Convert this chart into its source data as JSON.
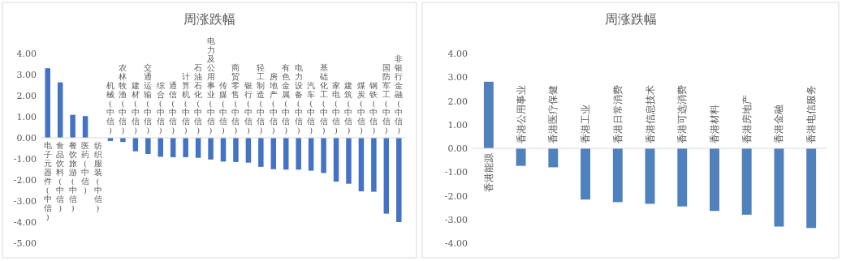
{
  "chart_data": [
    {
      "type": "bar",
      "title": "周涨跌幅",
      "categories": [
        "电子元器件(中信)",
        "食品饮料(中信)",
        "餐饮旅游(中信)",
        "医药(中信)",
        "纺织服装(中信)",
        "机械(中信)",
        "农林牧渔(中信)",
        "建材(中信)",
        "交通运输(中信)",
        "综合(中信)",
        "通信(中信)",
        "计算机(中信)",
        "石油石化(中信)",
        "电力及公用事业(中信)",
        "传媒(中信)",
        "商贸零售(中信)",
        "银行(中信)",
        "轻工制造(中信)",
        "房地产(中信)",
        "有色金属(中信)",
        "电力设备(中信)",
        "汽车(中信)",
        "基础化工(中信)",
        "家电(中信)",
        "建筑(中信)",
        "煤炭(中信)",
        "钢铁(中信)",
        "国防军工(中信)",
        "非银行金融(中信)"
      ],
      "values": [
        3.3,
        2.63,
        1.09,
        1.03,
        null,
        -0.15,
        -0.2,
        -0.64,
        -0.77,
        -0.9,
        -0.92,
        -0.92,
        -0.95,
        -1.03,
        -1.13,
        -1.15,
        -1.18,
        -1.38,
        -1.49,
        -1.51,
        -1.51,
        -1.56,
        -1.67,
        -2.08,
        -2.18,
        -2.54,
        -2.56,
        -3.6,
        -4.0
      ],
      "color": "#4472c4",
      "ylim": [
        -5,
        4
      ],
      "yticks": [
        {
          "value": -5,
          "label": "-5.00"
        },
        {
          "value": -4,
          "label": "-4.00"
        },
        {
          "value": -3,
          "label": "-3.00"
        },
        {
          "value": -2,
          "label": "-2.00"
        },
        {
          "value": -1,
          "label": "-1.00"
        },
        {
          "value": 0,
          "label": "0.00"
        },
        {
          "value": 1,
          "label": "1.00"
        },
        {
          "value": 2,
          "label": "2.00"
        },
        {
          "value": 3,
          "label": "3.00"
        },
        {
          "value": 4,
          "label": "4.00"
        }
      ]
    },
    {
      "type": "bar",
      "title": "周涨跌幅",
      "categories": [
        "香港能源",
        "香港公用事业",
        "香港医疗保健",
        "香港工业",
        "香港日常消费",
        "香港信息技术",
        "香港可选消费",
        "香港材料",
        "香港房地产",
        "香港金融",
        "香港电信服务"
      ],
      "values": [
        2.81,
        -0.74,
        -0.8,
        -2.16,
        -2.27,
        -2.34,
        -2.45,
        -2.64,
        -2.8,
        -3.3,
        -3.36
      ],
      "color": "#4f81bd",
      "ylim": [
        -4,
        4
      ],
      "yticks": [
        {
          "value": -4,
          "label": "-4.00"
        },
        {
          "value": -3,
          "label": "-3.00"
        },
        {
          "value": -2,
          "label": "-2.00"
        },
        {
          "value": -1,
          "label": "-1.00"
        },
        {
          "value": 0,
          "label": "0.00"
        },
        {
          "value": 1,
          "label": "1.00"
        },
        {
          "value": 2,
          "label": "2.00"
        },
        {
          "value": 3,
          "label": "3.00"
        },
        {
          "value": 4,
          "label": "4.00"
        }
      ]
    }
  ]
}
